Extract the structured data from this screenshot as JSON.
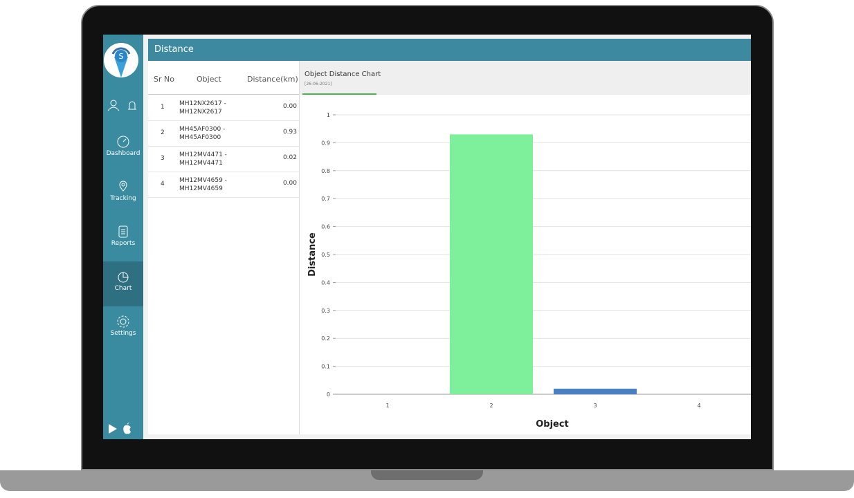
{
  "sidebar": {
    "nav": [
      "Dashboard",
      "Tracking",
      "Reports",
      "Chart",
      "Settings"
    ]
  },
  "header": {
    "title": "Distance"
  },
  "table": {
    "columns": [
      "Sr No",
      "Object",
      "Distance(km)"
    ],
    "rows": [
      [
        "1",
        "MH12NX2617 - MH12NX2617",
        "0.00"
      ],
      [
        "2",
        "MH45AF0300 - MH45AF0300",
        "0.93"
      ],
      [
        "3",
        "MH12MV4471 - MH12MV4471",
        "0.02"
      ],
      [
        "4",
        "MH12MV4659 - MH12MV4659",
        "0.00"
      ]
    ]
  },
  "chart_panel": {
    "title": "Object Distance Chart",
    "date": "[26-06-2021]"
  },
  "chart_data": {
    "type": "bar",
    "x_label": "Object",
    "y_label": "Distance",
    "categories": [
      "1",
      "2",
      "3",
      "4"
    ],
    "values": [
      0,
      0.93,
      0.02,
      0
    ],
    "colors": [
      "#7ef09c",
      "#7ef09c",
      "#4a7fc1",
      "#4a7fc1"
    ],
    "ylim": [
      0,
      1
    ],
    "yticks": [
      0,
      0.1,
      0.2,
      0.3,
      0.4,
      0.5,
      0.6,
      0.7,
      0.8,
      0.9,
      1
    ],
    "grid": true
  }
}
